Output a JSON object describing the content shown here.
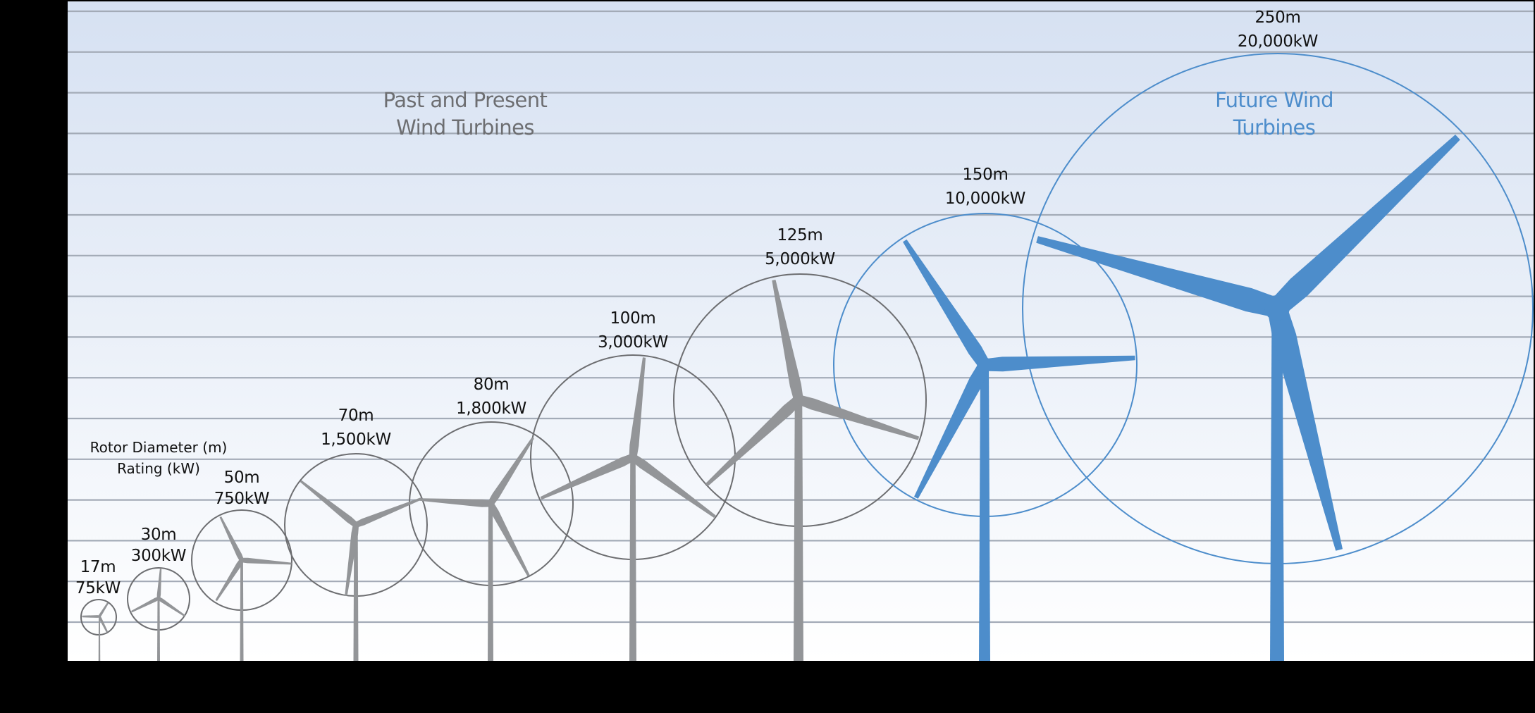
{
  "colors": {
    "background_top": "#d6e1f2",
    "background_bottom": "#ffffff",
    "gridline": "#a3abb7",
    "past_turbine": "#939598",
    "past_circle": "#6d6e71",
    "future_turbine": "#4d8dcb",
    "past_title": "#6d6e71",
    "future_title": "#4d8dcb",
    "frame": "#000000"
  },
  "titles": {
    "past": {
      "line1": "Past and Present",
      "line2": "Wind Turbines"
    },
    "future": {
      "line1": "Future Wind",
      "line2": "Turbines"
    }
  },
  "legend": {
    "line1": "Rotor Diameter (m)",
    "line2": "Rating (kW)"
  },
  "turbines": [
    {
      "diameter": "17m",
      "rating": "75kW",
      "group": "past"
    },
    {
      "diameter": "30m",
      "rating": "300kW",
      "group": "past"
    },
    {
      "diameter": "50m",
      "rating": "750kW",
      "group": "past"
    },
    {
      "diameter": "70m",
      "rating": "1,500kW",
      "group": "past"
    },
    {
      "diameter": "80m",
      "rating": "1,800kW",
      "group": "past"
    },
    {
      "diameter": "100m",
      "rating": "3,000kW",
      "group": "past"
    },
    {
      "diameter": "125m",
      "rating": "5,000kW",
      "group": "past"
    },
    {
      "diameter": "150m",
      "rating": "10,000kW",
      "group": "future"
    },
    {
      "diameter": "250m",
      "rating": "20,000kW",
      "group": "future"
    }
  ],
  "chart_data": {
    "type": "scatter",
    "title": "Past and Present Wind Turbines / Future Wind Turbines",
    "xlabel": "",
    "ylabel": "",
    "legend": [
      "Rotor Diameter (m)",
      "Rating (kW)"
    ],
    "categories": [
      "17m",
      "30m",
      "50m",
      "70m",
      "80m",
      "100m",
      "125m",
      "150m",
      "250m"
    ],
    "series": [
      {
        "name": "Rotor Diameter (m)",
        "values": [
          17,
          30,
          50,
          70,
          80,
          100,
          125,
          150,
          250
        ]
      },
      {
        "name": "Rating (kW)",
        "values": [
          75,
          300,
          750,
          1500,
          1800,
          3000,
          5000,
          10000,
          20000
        ]
      }
    ],
    "groups": {
      "Past and Present Wind Turbines": [
        "17m",
        "30m",
        "50m",
        "70m",
        "80m",
        "100m",
        "125m"
      ],
      "Future Wind Turbines": [
        "150m",
        "250m"
      ]
    },
    "grid": true,
    "gridlines_horizontal": 16
  }
}
